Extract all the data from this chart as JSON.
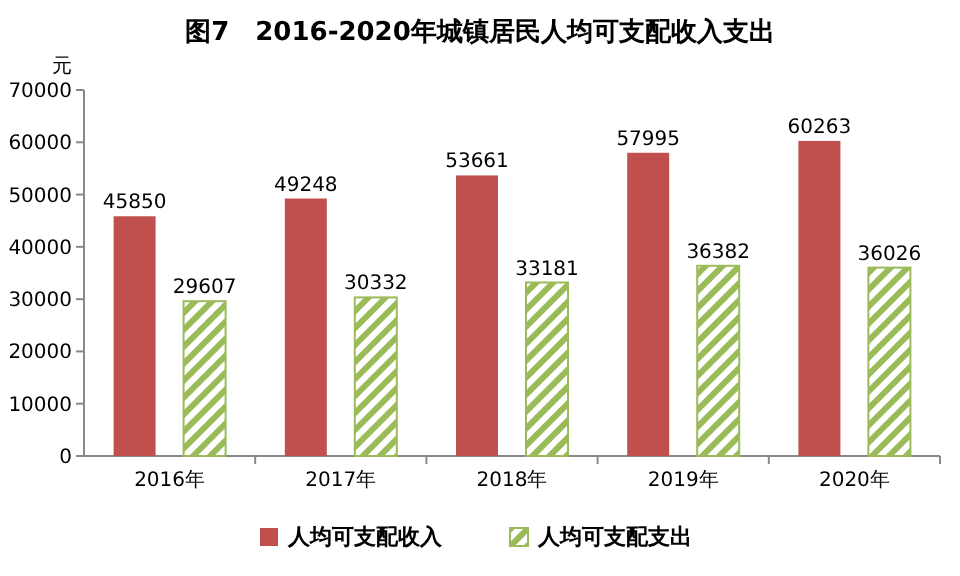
{
  "chart_data": {
    "type": "bar",
    "title": "图7　2016-2020年城镇居民人均可支配收入支出",
    "ylabel": "元",
    "categories": [
      "2016年",
      "2017年",
      "2018年",
      "2019年",
      "2020年"
    ],
    "series": [
      {
        "name": "人均可支配收入",
        "color": "#c0504d",
        "values": [
          45850,
          49248,
          53661,
          57995,
          60263
        ]
      },
      {
        "name": "人均可支配支出",
        "color": "#9bbb59",
        "values": [
          29607,
          30332,
          33181,
          36382,
          36026
        ]
      }
    ],
    "ylim": [
      0,
      70000
    ],
    "yticks": [
      0,
      10000,
      20000,
      30000,
      40000,
      50000,
      60000,
      70000
    ],
    "data_labels": true,
    "legend": "bottom",
    "grid": false
  }
}
